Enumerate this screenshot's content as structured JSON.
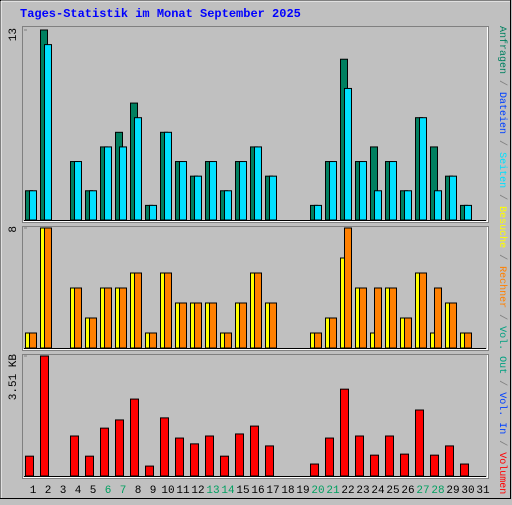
{
  "chart_data": {
    "type": "bar",
    "title": "Tages-Statistik im Monat September 2025",
    "categories": [
      "1",
      "2",
      "3",
      "4",
      "5",
      "6",
      "7",
      "8",
      "9",
      "10",
      "11",
      "12",
      "13",
      "14",
      "15",
      "16",
      "17",
      "18",
      "19",
      "20",
      "21",
      "22",
      "23",
      "24",
      "25",
      "26",
      "27",
      "28",
      "29",
      "30",
      "31"
    ],
    "weekend_indices": [
      5,
      6,
      12,
      13,
      19,
      20,
      26,
      27
    ],
    "weekday_color": "#000000",
    "weekend_color": "#00a060",
    "separator": " / ",
    "panels": [
      {
        "ylim": [
          0,
          13
        ],
        "yticks": [
          13
        ],
        "series": [
          {
            "name": "Anfragen",
            "color": "#008060",
            "values": [
              2,
              13,
              0,
              4,
              2,
              5,
              6,
              8,
              1,
              6,
              4,
              3,
              4,
              2,
              4,
              5,
              3,
              0,
              0,
              1,
              4,
              11,
              4,
              5,
              4,
              2,
              7,
              5,
              3,
              1,
              null
            ]
          },
          {
            "name": "Dateien",
            "color": "#0040ff"
          },
          {
            "name": "Seiten",
            "color": "#00e0ff",
            "values": [
              2,
              12,
              0,
              4,
              2,
              5,
              5,
              7,
              1,
              6,
              4,
              3,
              4,
              2,
              4,
              5,
              3,
              0,
              0,
              1,
              4,
              9,
              4,
              2,
              4,
              2,
              7,
              2,
              3,
              1,
              null
            ]
          }
        ]
      },
      {
        "ylim": [
          0,
          8
        ],
        "yticks": [
          8
        ],
        "series": [
          {
            "name": "Besuche",
            "color": "#ffff00",
            "values": [
              1,
              8,
              0,
              4,
              2,
              4,
              4,
              5,
              1,
              5,
              3,
              3,
              3,
              1,
              3,
              5,
              3,
              0,
              0,
              1,
              2,
              6,
              4,
              1,
              4,
              2,
              5,
              1,
              3,
              1,
              null
            ]
          },
          {
            "name": "Rechner",
            "color": "#ff8000",
            "values": [
              1,
              8,
              0,
              4,
              2,
              4,
              4,
              5,
              1,
              5,
              3,
              3,
              3,
              1,
              3,
              5,
              3,
              0,
              0,
              1,
              2,
              8,
              4,
              4,
              4,
              2,
              5,
              4,
              3,
              1,
              null
            ]
          }
        ]
      },
      {
        "ylim": [
          0,
          3.51
        ],
        "yticks": [
          {
            "value": 3.51,
            "label": "3.51 KB"
          }
        ],
        "series": [
          {
            "name": "Vol. Out",
            "color": "#00a080"
          },
          {
            "name": "Vol. In",
            "color": "#0040ff"
          },
          {
            "name": "Volumen",
            "color": "#ff0000",
            "values": [
              0.58,
              3.51,
              0,
              1.17,
              0.58,
              1.4,
              1.64,
              2.25,
              0.29,
              1.7,
              1.11,
              0.94,
              1.17,
              0.58,
              1.23,
              1.46,
              0.88,
              0,
              0,
              0.35,
              1.11,
              2.54,
              1.17,
              0.61,
              1.17,
              0.64,
              1.93,
              0.61,
              0.88,
              0.35,
              null
            ]
          }
        ]
      }
    ]
  }
}
